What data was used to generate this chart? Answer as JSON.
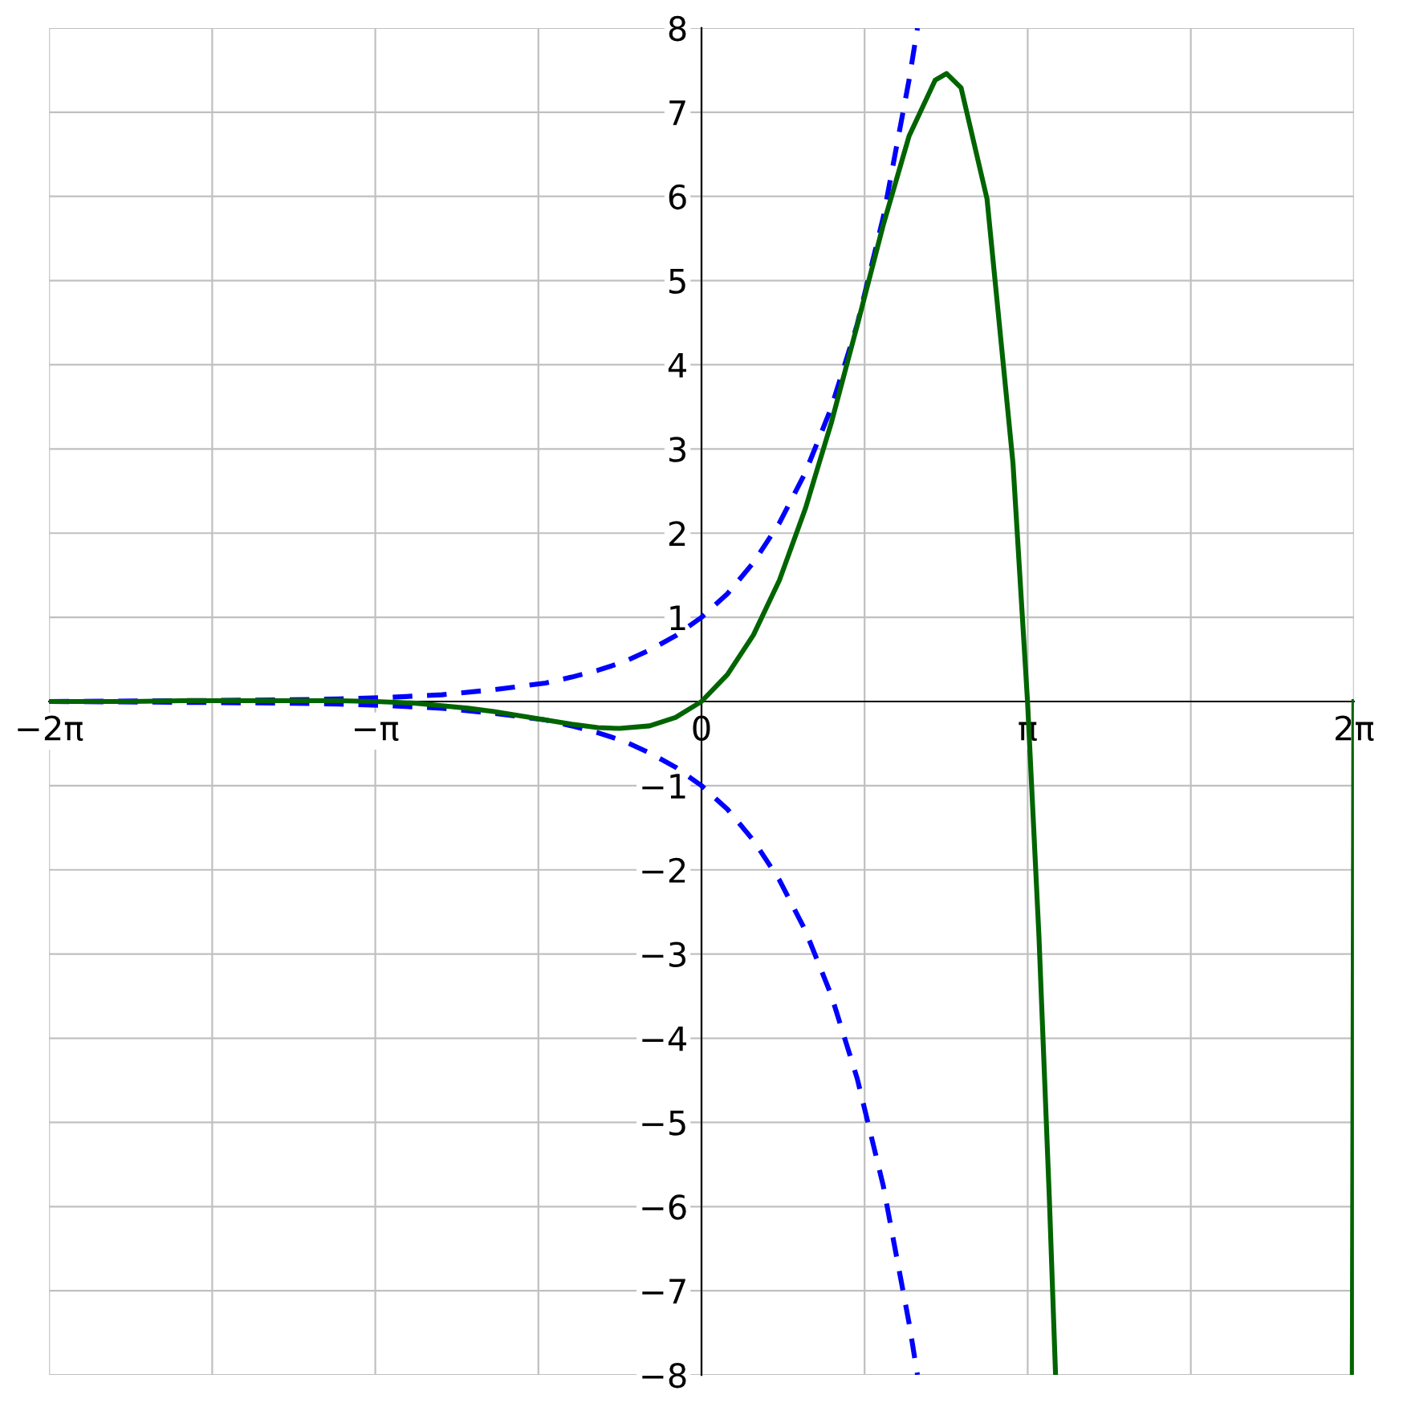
{
  "chart_data": {
    "type": "line",
    "xlim": [
      -6.2832,
      6.2832
    ],
    "ylim": [
      -8,
      8
    ],
    "xticks": [
      {
        "value": -6.2832,
        "label": "−2π"
      },
      {
        "value": -4.7124,
        "label": null
      },
      {
        "value": -3.1416,
        "label": "−π"
      },
      {
        "value": -1.5708,
        "label": null
      },
      {
        "value": 0,
        "label": "0"
      },
      {
        "value": 1.5708,
        "label": null
      },
      {
        "value": 3.1416,
        "label": "π"
      },
      {
        "value": 4.7124,
        "label": null
      },
      {
        "value": 6.2832,
        "label": "2π"
      }
    ],
    "yticks": [
      {
        "value": -8,
        "label": "−8"
      },
      {
        "value": -7,
        "label": "−7"
      },
      {
        "value": -6,
        "label": "−6"
      },
      {
        "value": -5,
        "label": "−5"
      },
      {
        "value": -4,
        "label": "−4"
      },
      {
        "value": -3,
        "label": "−3"
      },
      {
        "value": -2,
        "label": "−2"
      },
      {
        "value": -1,
        "label": "−1"
      },
      {
        "value": 0,
        "label": null
      },
      1,
      2,
      3,
      4,
      5,
      6,
      7,
      8
    ],
    "grid": true,
    "legend": false,
    "marker": "none",
    "series": [
      {
        "color": "#0000ff",
        "line_style": "dashed",
        "x": [
          -6.28,
          -5,
          -4,
          -3.5,
          -3,
          -2.5,
          -2,
          -1.5,
          -1.25,
          -1,
          -0.75,
          -0.5,
          -0.25,
          0,
          0.25,
          0.5,
          0.75,
          1,
          1.25,
          1.5,
          1.75,
          2,
          2.08
        ],
        "values": [
          0.0,
          0.01,
          0.02,
          0.03,
          0.05,
          0.08,
          0.14,
          0.22,
          0.29,
          0.37,
          0.47,
          0.61,
          0.78,
          1,
          1.28,
          1.65,
          2.12,
          2.72,
          3.49,
          4.48,
          5.75,
          7.39,
          8.0
        ]
      },
      {
        "color": "#0000ff",
        "line_style": "dashed",
        "x": [
          -6.28,
          -5,
          -4,
          -3.5,
          -3,
          -2.5,
          -2,
          -1.5,
          -1.25,
          -1,
          -0.75,
          -0.5,
          -0.25,
          0,
          0.25,
          0.5,
          0.75,
          1,
          1.25,
          1.5,
          1.75,
          2,
          2.08
        ],
        "values": [
          0.0,
          -0.01,
          -0.02,
          -0.03,
          -0.05,
          -0.08,
          -0.14,
          -0.22,
          -0.29,
          -0.37,
          -0.47,
          -0.61,
          -0.78,
          -1,
          -1.28,
          -1.65,
          -2.12,
          -2.72,
          -3.49,
          -4.48,
          -5.75,
          -7.39,
          -8.0
        ]
      },
      {
        "color": "#006400",
        "line_style": "solid",
        "x": [
          -6.28,
          -5.5,
          -5,
          -4.5,
          -4,
          -3.5,
          -3.14,
          -2.75,
          -2.5,
          -2.25,
          -2,
          -1.75,
          -1.5,
          -1.25,
          -1,
          -0.79,
          -0.5,
          -0.25,
          0,
          0.25,
          0.5,
          0.75,
          1,
          1.25,
          1.5,
          1.75,
          2,
          2.25,
          2.36,
          2.5,
          2.75,
          3,
          3.14,
          3.25,
          3.35,
          3.41,
          4.5,
          6.268,
          6.275,
          6.2832
        ],
        "values": [
          0.0,
          0.0,
          0.01,
          0.01,
          0.01,
          0.01,
          0.0,
          -0.02,
          -0.05,
          -0.08,
          -0.12,
          -0.17,
          -0.22,
          -0.27,
          -0.31,
          -0.32,
          -0.29,
          -0.19,
          0,
          0.32,
          0.79,
          1.44,
          2.29,
          3.31,
          4.47,
          5.66,
          6.72,
          7.38,
          7.46,
          7.29,
          5.97,
          2.83,
          0,
          -2.79,
          -5.9,
          -8.0,
          null,
          -8.0,
          -4.3,
          0
        ]
      }
    ]
  }
}
